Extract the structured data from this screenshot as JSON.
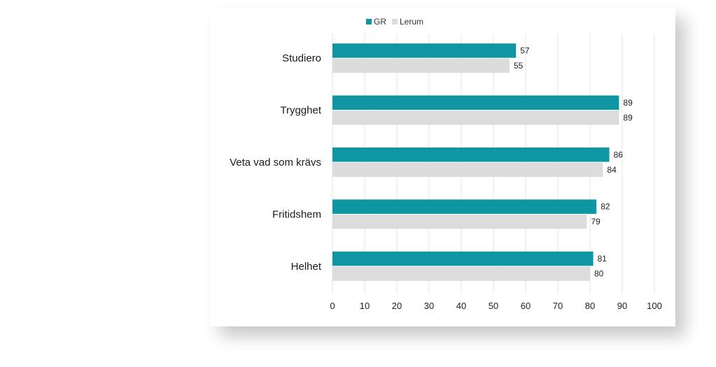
{
  "chart_data": {
    "type": "bar",
    "orientation": "horizontal",
    "categories": [
      "Studiero",
      "Trygghet",
      "Veta vad som krävs",
      "Fritidshem",
      "Helhet"
    ],
    "series": [
      {
        "name": "GR",
        "values": [
          57,
          89,
          86,
          82,
          81
        ],
        "color": "#0e97a2"
      },
      {
        "name": "Lerum",
        "values": [
          55,
          89,
          84,
          79,
          80
        ],
        "color": "#dcdcdc"
      }
    ],
    "xlim": [
      0,
      100
    ],
    "xticks": [
      "0",
      "10",
      "20",
      "30",
      "40",
      "50",
      "60",
      "70",
      "80",
      "90",
      "100"
    ],
    "grid": "vertical",
    "legend": "top",
    "data_labels": true
  }
}
